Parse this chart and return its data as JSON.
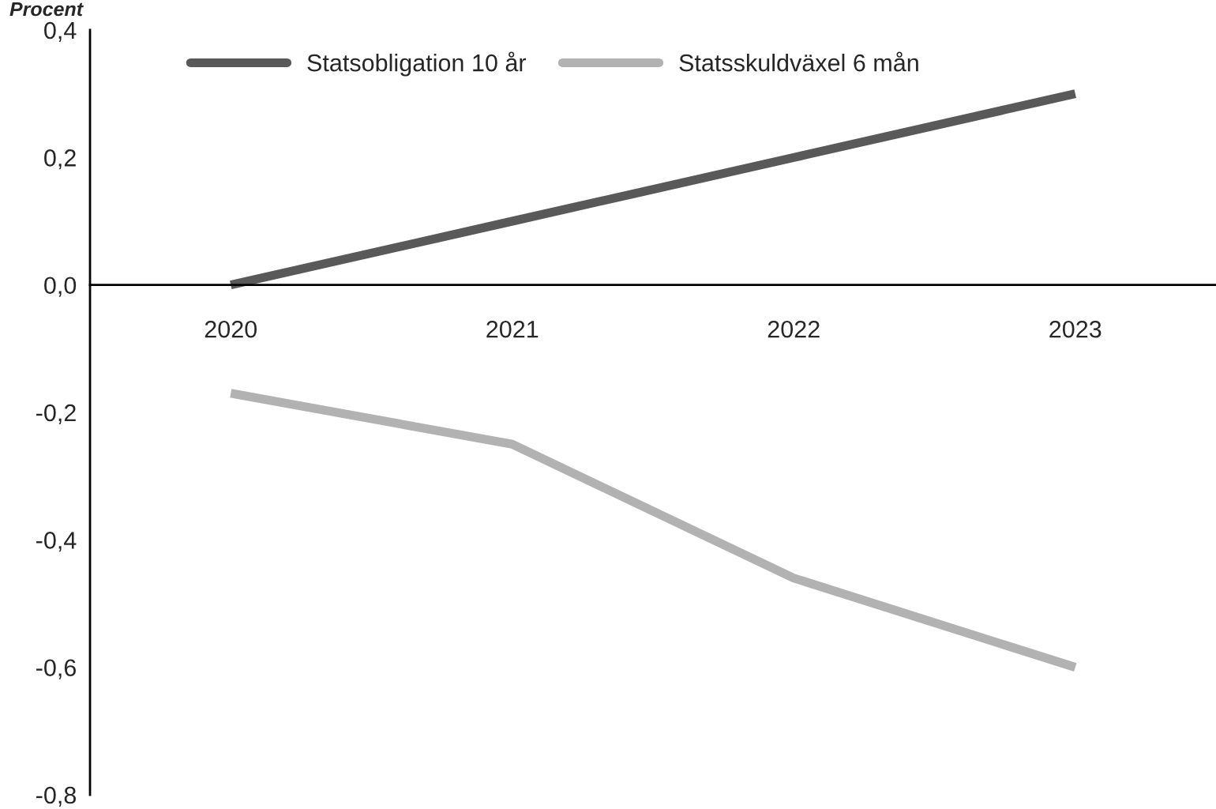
{
  "chart_data": {
    "type": "line",
    "ylabel": "Procent",
    "categories": [
      "2020",
      "2021",
      "2022",
      "2023"
    ],
    "series": [
      {
        "name": "Statsobligation 10 år",
        "color": "#595959",
        "values": [
          0.0,
          0.1,
          0.2,
          0.3
        ]
      },
      {
        "name": "Statsskuldväxel 6 mån",
        "color": "#b2b2b2",
        "values": [
          -0.17,
          -0.25,
          -0.46,
          -0.6
        ]
      }
    ],
    "ylim": [
      -0.8,
      0.4
    ],
    "yticks": [
      {
        "value": -0.8,
        "label": "-0,8"
      },
      {
        "value": -0.6,
        "label": "-0,6"
      },
      {
        "value": -0.4,
        "label": "-0,4"
      },
      {
        "value": -0.2,
        "label": "-0,2"
      },
      {
        "value": 0.0,
        "label": "0,0"
      },
      {
        "value": 0.2,
        "label": "0,2"
      },
      {
        "value": 0.4,
        "label": "0,4"
      }
    ],
    "grid": false,
    "legend": "top left",
    "marker": "none",
    "line_style": "solid"
  }
}
